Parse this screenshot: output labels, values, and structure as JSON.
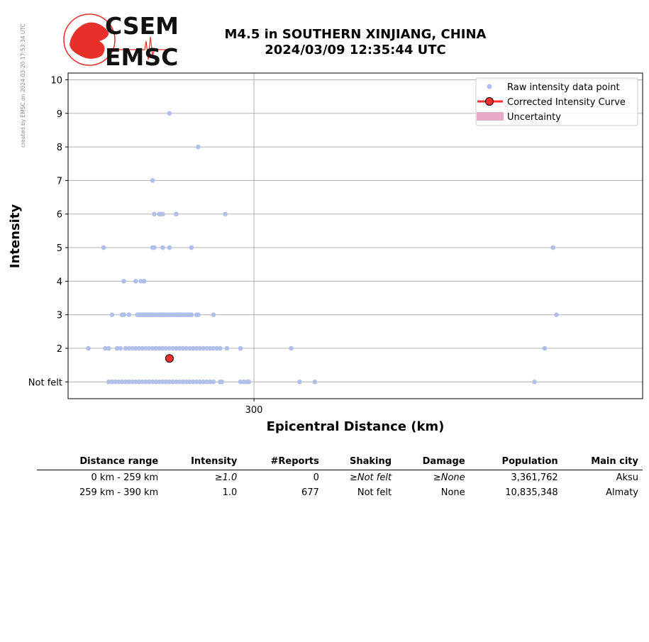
{
  "credit": "created by EMSC on 2024-03-20 17:53:34 UTC",
  "logo": {
    "top": "CSEM",
    "bottom": "EMSC"
  },
  "title": {
    "line1": "M4.5 in SOUTHERN XINJIANG, CHINA",
    "line2": "2024/03/09 12:35:44 UTC"
  },
  "chart_data": {
    "type": "scatter",
    "xlabel": "Epicentral Distance (km)",
    "ylabel": "Intensity",
    "xlim": [
      190,
      530
    ],
    "ylim": [
      0.5,
      10.2
    ],
    "xticks": [
      {
        "value": 300,
        "label": "300"
      }
    ],
    "yticks": [
      {
        "value": 1,
        "label": "Not felt"
      },
      {
        "value": 2,
        "label": "2"
      },
      {
        "value": 3,
        "label": "3"
      },
      {
        "value": 4,
        "label": "4"
      },
      {
        "value": 5,
        "label": "5"
      },
      {
        "value": 6,
        "label": "6"
      },
      {
        "value": 7,
        "label": "7"
      },
      {
        "value": 8,
        "label": "8"
      },
      {
        "value": 9,
        "label": "9"
      },
      {
        "value": 10,
        "label": "10"
      }
    ],
    "grid": true,
    "legend_position": "top-right",
    "colors": {
      "raw": "#b0bfea",
      "curve": "#ff3030",
      "uncertainty": "#e8a8c8"
    },
    "series": [
      {
        "name": "Raw intensity data point",
        "points": [
          [
            250,
            9
          ],
          [
            267,
            8
          ],
          [
            240,
            7
          ],
          [
            241,
            6
          ],
          [
            244,
            6
          ],
          [
            245,
            6
          ],
          [
            246,
            6
          ],
          [
            254,
            6
          ],
          [
            283,
            6
          ],
          [
            211,
            5
          ],
          [
            240,
            5
          ],
          [
            241,
            5
          ],
          [
            246,
            5
          ],
          [
            250,
            5
          ],
          [
            263,
            5
          ],
          [
            477,
            5
          ],
          [
            223,
            4
          ],
          [
            230,
            4
          ],
          [
            233,
            4
          ],
          [
            235,
            4
          ],
          [
            216,
            3
          ],
          [
            222,
            3
          ],
          [
            223,
            3
          ],
          [
            226,
            3
          ],
          [
            231,
            3
          ],
          [
            232,
            3
          ],
          [
            233,
            3
          ],
          [
            234,
            3
          ],
          [
            235,
            3
          ],
          [
            236,
            3
          ],
          [
            237,
            3
          ],
          [
            238,
            3
          ],
          [
            239,
            3
          ],
          [
            240,
            3
          ],
          [
            241,
            3
          ],
          [
            242,
            3
          ],
          [
            243,
            3
          ],
          [
            244,
            3
          ],
          [
            245,
            3
          ],
          [
            246,
            3
          ],
          [
            247,
            3
          ],
          [
            248,
            3
          ],
          [
            249,
            3
          ],
          [
            250,
            3
          ],
          [
            251,
            3
          ],
          [
            252,
            3
          ],
          [
            253,
            3
          ],
          [
            254,
            3
          ],
          [
            255,
            3
          ],
          [
            256,
            3
          ],
          [
            257,
            3
          ],
          [
            258,
            3
          ],
          [
            259,
            3
          ],
          [
            260,
            3
          ],
          [
            261,
            3
          ],
          [
            262,
            3
          ],
          [
            263,
            3
          ],
          [
            266,
            3
          ],
          [
            267,
            3
          ],
          [
            276,
            3
          ],
          [
            479,
            3
          ],
          [
            202,
            2
          ],
          [
            212,
            2
          ],
          [
            214,
            2
          ],
          [
            219,
            2
          ],
          [
            221,
            2
          ],
          [
            224,
            2
          ],
          [
            226,
            2
          ],
          [
            228,
            2
          ],
          [
            230,
            2
          ],
          [
            232,
            2
          ],
          [
            234,
            2
          ],
          [
            236,
            2
          ],
          [
            238,
            2
          ],
          [
            240,
            2
          ],
          [
            242,
            2
          ],
          [
            244,
            2
          ],
          [
            246,
            2
          ],
          [
            248,
            2
          ],
          [
            250,
            2
          ],
          [
            252,
            2
          ],
          [
            254,
            2
          ],
          [
            256,
            2
          ],
          [
            258,
            2
          ],
          [
            260,
            2
          ],
          [
            262,
            2
          ],
          [
            264,
            2
          ],
          [
            266,
            2
          ],
          [
            268,
            2
          ],
          [
            270,
            2
          ],
          [
            272,
            2
          ],
          [
            274,
            2
          ],
          [
            276,
            2
          ],
          [
            278,
            2
          ],
          [
            280,
            2
          ],
          [
            284,
            2
          ],
          [
            292,
            2
          ],
          [
            322,
            2
          ],
          [
            472,
            2
          ],
          [
            214,
            1
          ],
          [
            216,
            1
          ],
          [
            218,
            1
          ],
          [
            220,
            1
          ],
          [
            222,
            1
          ],
          [
            224,
            1
          ],
          [
            226,
            1
          ],
          [
            228,
            1
          ],
          [
            230,
            1
          ],
          [
            232,
            1
          ],
          [
            234,
            1
          ],
          [
            236,
            1
          ],
          [
            238,
            1
          ],
          [
            240,
            1
          ],
          [
            242,
            1
          ],
          [
            244,
            1
          ],
          [
            246,
            1
          ],
          [
            248,
            1
          ],
          [
            250,
            1
          ],
          [
            252,
            1
          ],
          [
            254,
            1
          ],
          [
            256,
            1
          ],
          [
            258,
            1
          ],
          [
            260,
            1
          ],
          [
            262,
            1
          ],
          [
            264,
            1
          ],
          [
            266,
            1
          ],
          [
            268,
            1
          ],
          [
            270,
            1
          ],
          [
            272,
            1
          ],
          [
            274,
            1
          ],
          [
            276,
            1
          ],
          [
            280,
            1
          ],
          [
            281,
            1
          ],
          [
            292,
            1
          ],
          [
            294,
            1
          ],
          [
            296,
            1
          ],
          [
            297,
            1
          ],
          [
            327,
            1
          ],
          [
            336,
            1
          ],
          [
            466,
            1
          ]
        ]
      },
      {
        "name": "Corrected Intensity Curve",
        "points": [
          [
            250,
            1.7
          ]
        ]
      },
      {
        "name": "Uncertainty",
        "points": []
      }
    ]
  },
  "table": {
    "headers": [
      "Distance range",
      "Intensity",
      "#Reports",
      "Shaking",
      "Damage",
      "Population",
      "Main city"
    ],
    "rows": [
      [
        "0 km -  259 km",
        "≥1.0",
        "0",
        "≥Not felt",
        "≥None",
        "3,361,762",
        "Aksu"
      ],
      [
        "259 km -  390 km",
        "1.0",
        "677",
        "Not felt",
        "None",
        "10,835,348",
        "Almaty"
      ]
    ]
  }
}
